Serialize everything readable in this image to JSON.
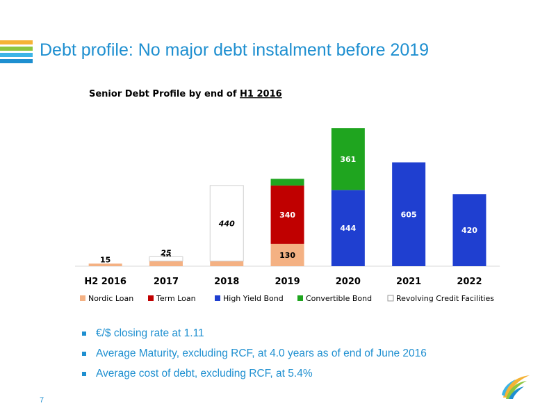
{
  "slide": {
    "title": "Debt profile: No major debt instalment before 2019",
    "page_number": "7",
    "stripe_colors": [
      "#f5b335",
      "#8dc63f",
      "#3cb4e6",
      "#1e8fd0"
    ],
    "bullets": [
      "€/$ closing rate at 1.11",
      "Average Maturity, excluding RCF, at 4.0 years as of end of June 2016",
      "Average cost of debt, excluding RCF, at 5.4%"
    ]
  },
  "chart_data": {
    "type": "bar",
    "stacked": true,
    "title_prefix": "Senior Debt Profile by end of ",
    "title_underlined": "H1 2016",
    "categories": [
      "H2 2016",
      "2017",
      "2018",
      "2019",
      "2020",
      "2021",
      "2022"
    ],
    "series": [
      {
        "name": "Nordic Loan",
        "color": "#f4b183",
        "values": [
          15,
          30,
          30,
          130,
          0,
          0,
          0
        ],
        "labels": [
          "15",
          "30",
          "30",
          "130",
          "",
          "",
          ""
        ]
      },
      {
        "name": "Term Loan",
        "color": "#c00000",
        "values": [
          0,
          0,
          0,
          340,
          0,
          0,
          0
        ],
        "labels": [
          "",
          "",
          "",
          "340",
          "",
          "",
          ""
        ]
      },
      {
        "name": "High Yield Bond",
        "color": "#1f3fd0",
        "values": [
          0,
          0,
          0,
          0,
          444,
          605,
          420
        ],
        "labels": [
          "",
          "",
          "",
          "",
          "444",
          "605",
          "420"
        ]
      },
      {
        "name": "Convertible Bond",
        "color": "#1fa51f",
        "values": [
          0,
          0,
          0,
          39,
          361,
          0,
          0
        ],
        "labels": [
          "",
          "",
          "",
          "39",
          "361",
          "",
          ""
        ]
      },
      {
        "name": "Revolving Credit Facilities",
        "color": "#ffffff",
        "values": [
          0,
          25,
          440,
          0,
          0,
          0,
          0
        ],
        "labels": [
          "",
          "25",
          "440",
          "",
          "",
          "",
          ""
        ]
      }
    ],
    "ylim": [
      0,
      830
    ],
    "grid": false,
    "legend_position": "bottom"
  }
}
